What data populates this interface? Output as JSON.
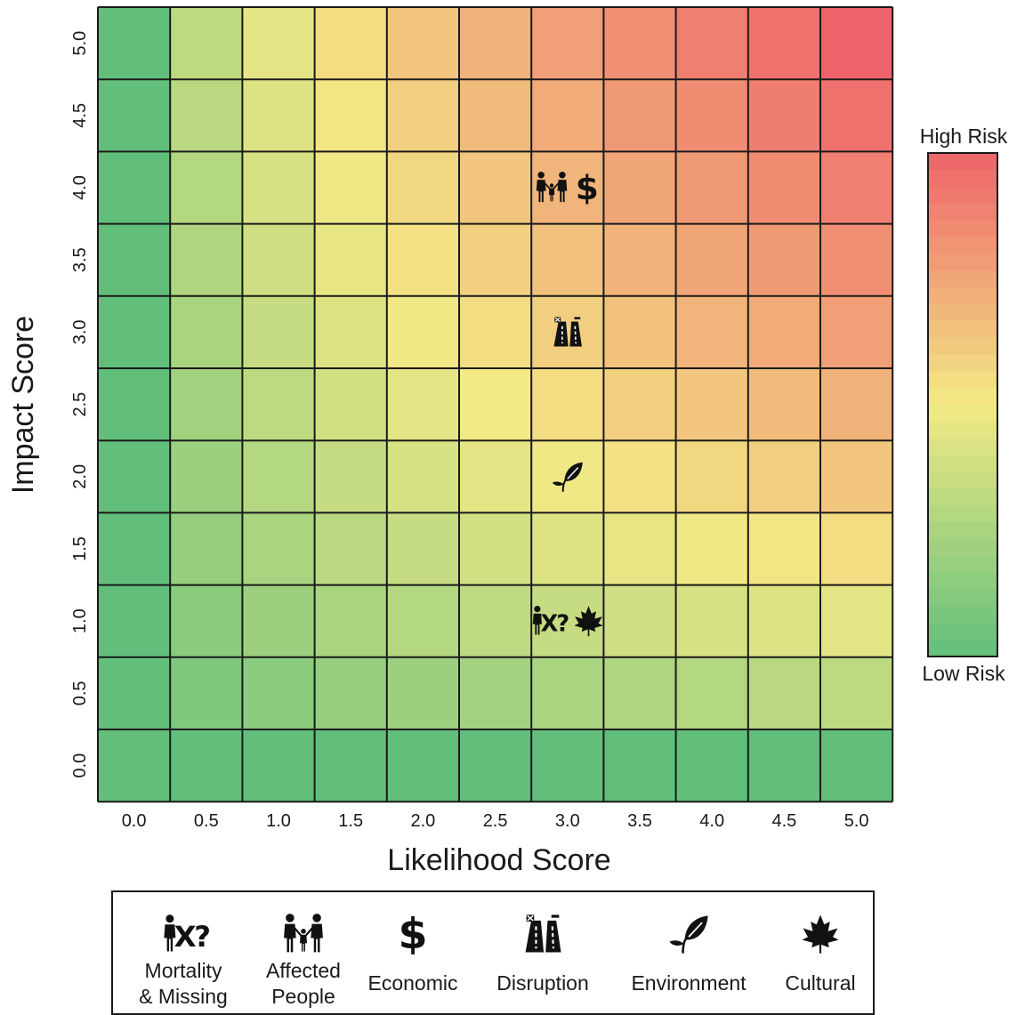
{
  "chart_data": {
    "type": "heatmap",
    "xlabel": "Likelihood Score",
    "ylabel": "Impact Score",
    "x_ticks": [
      "0.0",
      "0.5",
      "1.0",
      "1.5",
      "2.0",
      "2.5",
      "3.0",
      "3.5",
      "4.0",
      "4.5",
      "5.0"
    ],
    "y_ticks": [
      "0.0",
      "0.5",
      "1.0",
      "1.5",
      "2.0",
      "2.5",
      "3.0",
      "3.5",
      "4.0",
      "4.5",
      "5.0"
    ],
    "xlim": [
      0,
      5
    ],
    "ylim": [
      0,
      5
    ],
    "colorbar": {
      "top_label": "High Risk",
      "bottom_label": "Low Risk",
      "low_color": "#62bf7b",
      "mid_color": "#f3e985",
      "high_color": "#ee636a"
    },
    "markers": [
      {
        "likelihood": 3.0,
        "impact": 4.0,
        "categories": [
          "affected-people",
          "economic"
        ]
      },
      {
        "likelihood": 3.0,
        "impact": 3.0,
        "categories": [
          "disruption"
        ]
      },
      {
        "likelihood": 3.0,
        "impact": 2.0,
        "categories": [
          "environment"
        ]
      },
      {
        "likelihood": 3.0,
        "impact": 1.0,
        "categories": [
          "mortality-missing",
          "cultural"
        ]
      }
    ]
  },
  "legend": [
    {
      "id": "mortality-missing",
      "icon": "mortality-missing-icon",
      "label": "Mortality\n& Missing",
      "glyph": "?"
    },
    {
      "id": "affected-people",
      "icon": "affected-people-icon",
      "label": "Affected\nPeople",
      "glyph": ""
    },
    {
      "id": "economic",
      "icon": "economic-icon",
      "label": "Economic",
      "glyph": "$"
    },
    {
      "id": "disruption",
      "icon": "disruption-icon",
      "label": "Disruption",
      "glyph": ""
    },
    {
      "id": "environment",
      "icon": "environment-icon",
      "label": "Environment",
      "glyph": ""
    },
    {
      "id": "cultural",
      "icon": "cultural-icon",
      "label": "Cultural",
      "glyph": ""
    }
  ]
}
